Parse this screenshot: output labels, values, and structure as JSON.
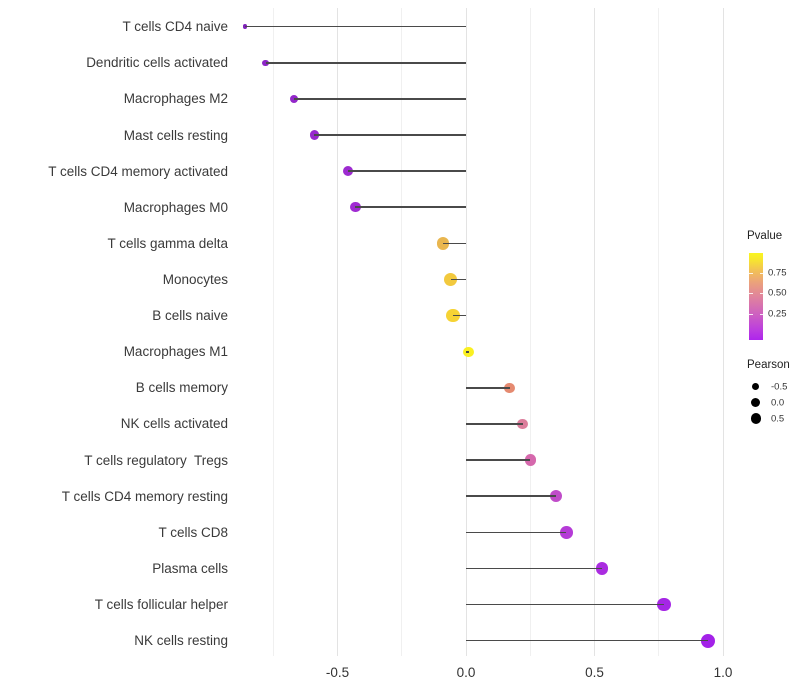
{
  "legend": {
    "pvalue_title": "Pvalue",
    "pvalue_tick_labels": [
      "0.75",
      "0.50",
      "0.25"
    ],
    "pearson_title": "Pearson",
    "pearson_size_keys": [
      {
        "label": "-0.5",
        "r": 3.7
      },
      {
        "label": "0.0",
        "r": 4.5
      },
      {
        "label": "0.5",
        "r": 5.2
      }
    ]
  },
  "axis": {
    "x_tick_labels": [
      "-0.5",
      "0.0",
      "0.5",
      "1.0"
    ],
    "x_tick_values": [
      -0.5,
      0.0,
      0.5,
      1.0
    ]
  },
  "chart_data": {
    "type": "lollipop",
    "title": "",
    "xlabel": "",
    "ylabel": "",
    "x_range": [
      -0.95,
      1.05
    ],
    "grid": "vertical, every 0.25 from -0.75 to 1.0",
    "legend_position": "right",
    "color_scale": {
      "title": "Pvalue",
      "type": "continuous-gradient (plasma-like, purple=low, yellow=high)",
      "ticks": [
        0.25,
        0.5,
        0.75
      ]
    },
    "size_scale": {
      "title": "Pearson",
      "breaks": [
        -0.5,
        0.0,
        0.5
      ]
    },
    "points": [
      {
        "label": "T cells CD4 naive",
        "pearson": -0.86,
        "color": "#8021bc",
        "r": 2.4
      },
      {
        "label": "Dendritic cells activated",
        "pearson": -0.78,
        "color": "#8c25c6",
        "r": 3.3
      },
      {
        "label": "Macrophages M2",
        "pearson": -0.67,
        "color": "#9328ca",
        "r": 4.3
      },
      {
        "label": "Mast cells resting",
        "pearson": -0.59,
        "color": "#9829cd",
        "r": 4.6
      },
      {
        "label": "T cells CD4 memory activated",
        "pearson": -0.46,
        "color": "#9d2bd0",
        "r": 5.0
      },
      {
        "label": "Macrophages M0",
        "pearson": -0.43,
        "color": "#a02bd2",
        "r": 5.2
      },
      {
        "label": "T cells gamma delta",
        "pearson": -0.09,
        "color": "#e9b64f",
        "r": 6.3
      },
      {
        "label": "Monocytes",
        "pearson": -0.06,
        "color": "#f2c93e",
        "r": 6.7
      },
      {
        "label": "B cells naive",
        "pearson": -0.05,
        "color": "#f6d334",
        "r": 6.7
      },
      {
        "label": "Macrophages M1",
        "pearson": 0.01,
        "color": "#faf021",
        "r": 5.2
      },
      {
        "label": "B cells memory",
        "pearson": 0.17,
        "color": "#e58a70",
        "r": 5.3
      },
      {
        "label": "NK cells activated",
        "pearson": 0.22,
        "color": "#dc7e9c",
        "r": 5.4
      },
      {
        "label": "T cells regulatory  Tregs",
        "pearson": 0.25,
        "color": "#d568ac",
        "r": 5.7
      },
      {
        "label": "T cells CD4 memory resting",
        "pearson": 0.35,
        "color": "#c04cc9",
        "r": 6.0
      },
      {
        "label": "T cells CD8",
        "pearson": 0.39,
        "color": "#b53bd7",
        "r": 6.3
      },
      {
        "label": "Plasma cells",
        "pearson": 0.53,
        "color": "#aa2ce0",
        "r": 6.2
      },
      {
        "label": "T cells follicular helper",
        "pearson": 0.77,
        "color": "#a526e5",
        "r": 6.7
      },
      {
        "label": "NK cells resting",
        "pearson": 0.94,
        "color": "#a322e8",
        "r": 7.0
      }
    ]
  }
}
